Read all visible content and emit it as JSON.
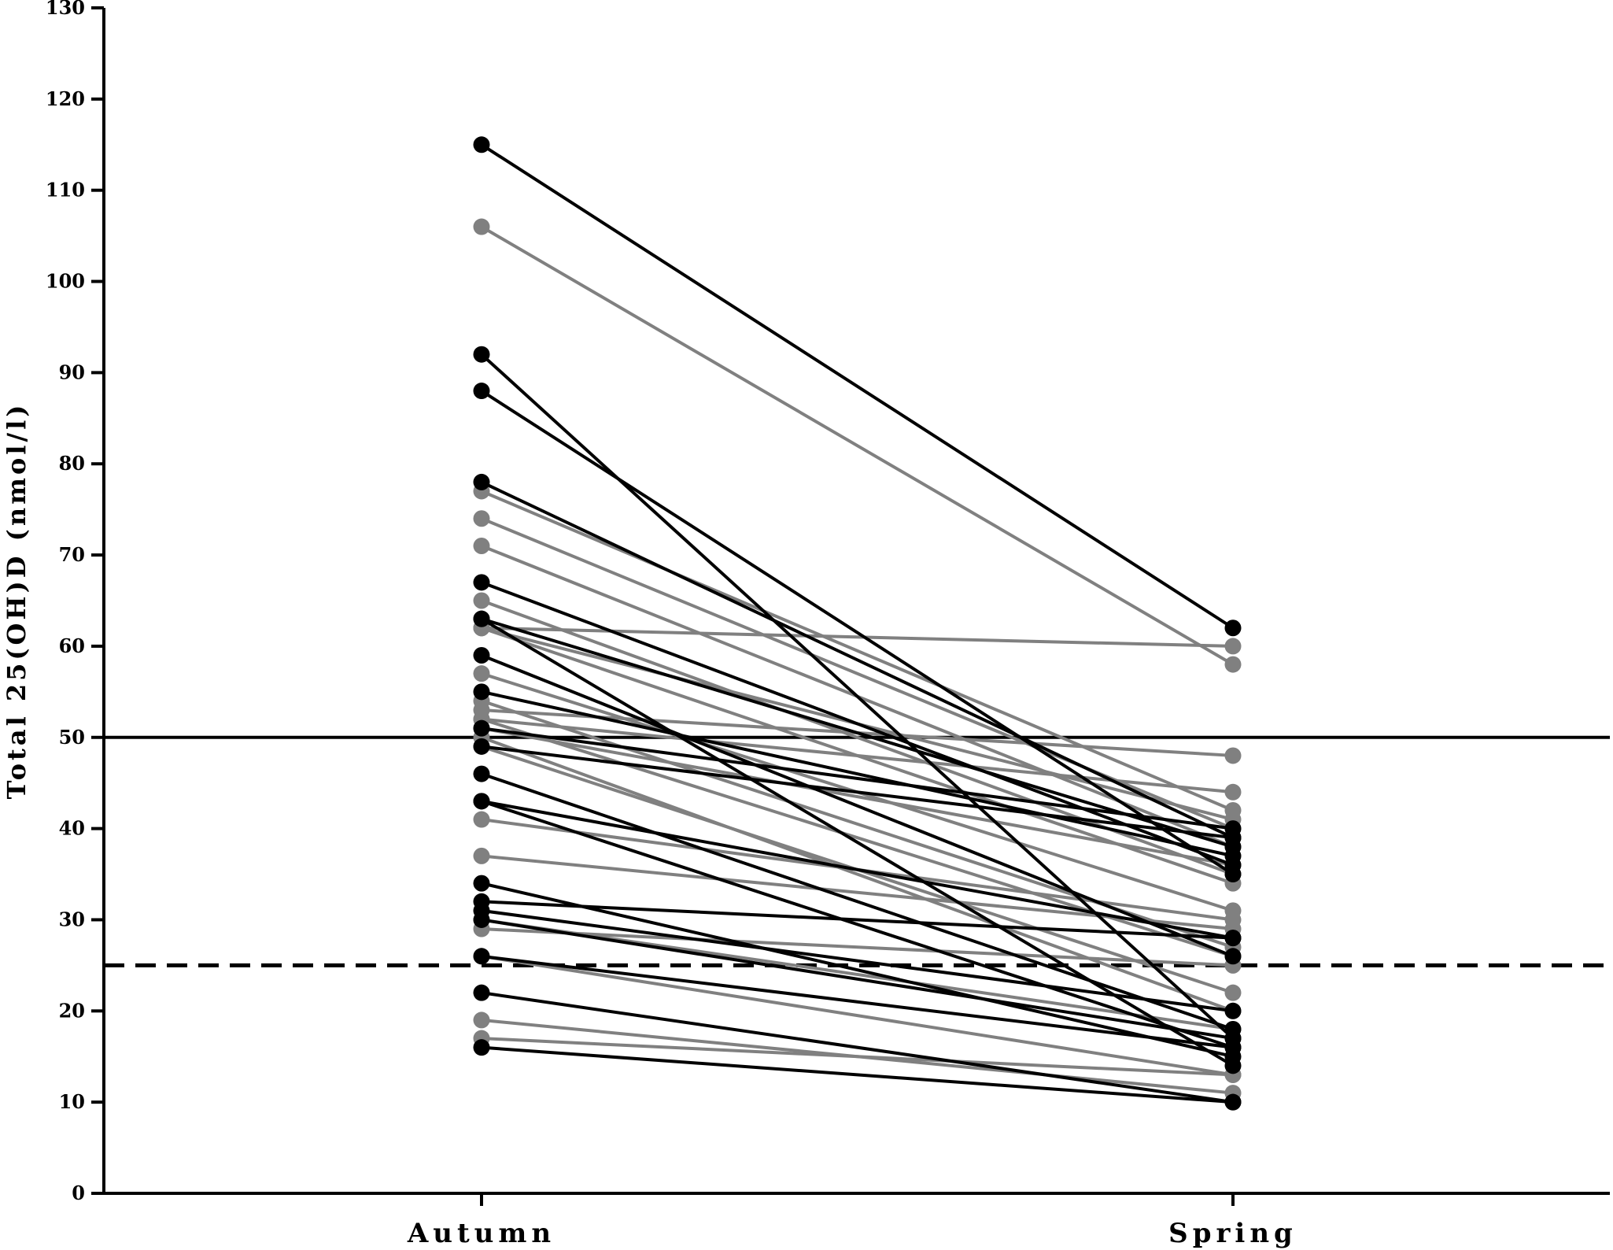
{
  "chart_data": {
    "type": "line",
    "title": "",
    "ylabel": "Total 25(OH)D (nmol/l)",
    "xlabel": "",
    "categories": [
      "Autumn",
      "Spring"
    ],
    "ylim": [
      0,
      130
    ],
    "yticks": [
      0,
      10,
      20,
      30,
      40,
      50,
      60,
      70,
      80,
      90,
      100,
      110,
      120,
      130
    ],
    "colors": {
      "black": "#000000",
      "grey": "#808080"
    },
    "reference_lines": [
      {
        "y": 50,
        "style": "solid"
      },
      {
        "y": 25,
        "style": "dashed"
      }
    ],
    "pairs": [
      {
        "autumn": 115,
        "spring": 62,
        "color": "black"
      },
      {
        "autumn": 106,
        "spring": 58,
        "color": "grey"
      },
      {
        "autumn": 92,
        "spring": 17,
        "color": "black"
      },
      {
        "autumn": 88,
        "spring": 35,
        "color": "black"
      },
      {
        "autumn": 78,
        "spring": 39,
        "color": "black"
      },
      {
        "autumn": 77,
        "spring": 42,
        "color": "grey"
      },
      {
        "autumn": 74,
        "spring": 40,
        "color": "grey"
      },
      {
        "autumn": 71,
        "spring": 38,
        "color": "grey"
      },
      {
        "autumn": 67,
        "spring": 36,
        "color": "black"
      },
      {
        "autumn": 65,
        "spring": 35,
        "color": "grey"
      },
      {
        "autumn": 63,
        "spring": 14,
        "color": "black"
      },
      {
        "autumn": 62,
        "spring": 60,
        "color": "grey"
      },
      {
        "autumn": 62,
        "spring": 41,
        "color": "grey"
      },
      {
        "autumn": 62,
        "spring": 34,
        "color": "grey"
      },
      {
        "autumn": 63,
        "spring": 38,
        "color": "black"
      },
      {
        "autumn": 59,
        "spring": 26,
        "color": "black"
      },
      {
        "autumn": 57,
        "spring": 31,
        "color": "grey"
      },
      {
        "autumn": 55,
        "spring": 37,
        "color": "black"
      },
      {
        "autumn": 53,
        "spring": 48,
        "color": "grey"
      },
      {
        "autumn": 54,
        "spring": 27,
        "color": "grey"
      },
      {
        "autumn": 52,
        "spring": 44,
        "color": "grey"
      },
      {
        "autumn": 52,
        "spring": 26,
        "color": "grey"
      },
      {
        "autumn": 51,
        "spring": 36,
        "color": "grey"
      },
      {
        "autumn": 51,
        "spring": 40,
        "color": "black"
      },
      {
        "autumn": 50,
        "spring": 20,
        "color": "grey"
      },
      {
        "autumn": 49,
        "spring": 22,
        "color": "grey"
      },
      {
        "autumn": 49,
        "spring": 39,
        "color": "black"
      },
      {
        "autumn": 46,
        "spring": 18,
        "color": "black"
      },
      {
        "autumn": 43,
        "spring": 28,
        "color": "black"
      },
      {
        "autumn": 43,
        "spring": 16,
        "color": "black"
      },
      {
        "autumn": 41,
        "spring": 30,
        "color": "grey"
      },
      {
        "autumn": 37,
        "spring": 29,
        "color": "grey"
      },
      {
        "autumn": 34,
        "spring": 15,
        "color": "black"
      },
      {
        "autumn": 32,
        "spring": 28,
        "color": "black"
      },
      {
        "autumn": 31,
        "spring": 20,
        "color": "black"
      },
      {
        "autumn": 30,
        "spring": 17,
        "color": "black"
      },
      {
        "autumn": 30,
        "spring": 18,
        "color": "grey"
      },
      {
        "autumn": 29,
        "spring": 25,
        "color": "grey"
      },
      {
        "autumn": 26,
        "spring": 13,
        "color": "grey"
      },
      {
        "autumn": 26,
        "spring": 16,
        "color": "black"
      },
      {
        "autumn": 22,
        "spring": 10,
        "color": "black"
      },
      {
        "autumn": 19,
        "spring": 11,
        "color": "grey"
      },
      {
        "autumn": 17,
        "spring": 13,
        "color": "grey"
      },
      {
        "autumn": 16,
        "spring": 10,
        "color": "black"
      }
    ]
  }
}
